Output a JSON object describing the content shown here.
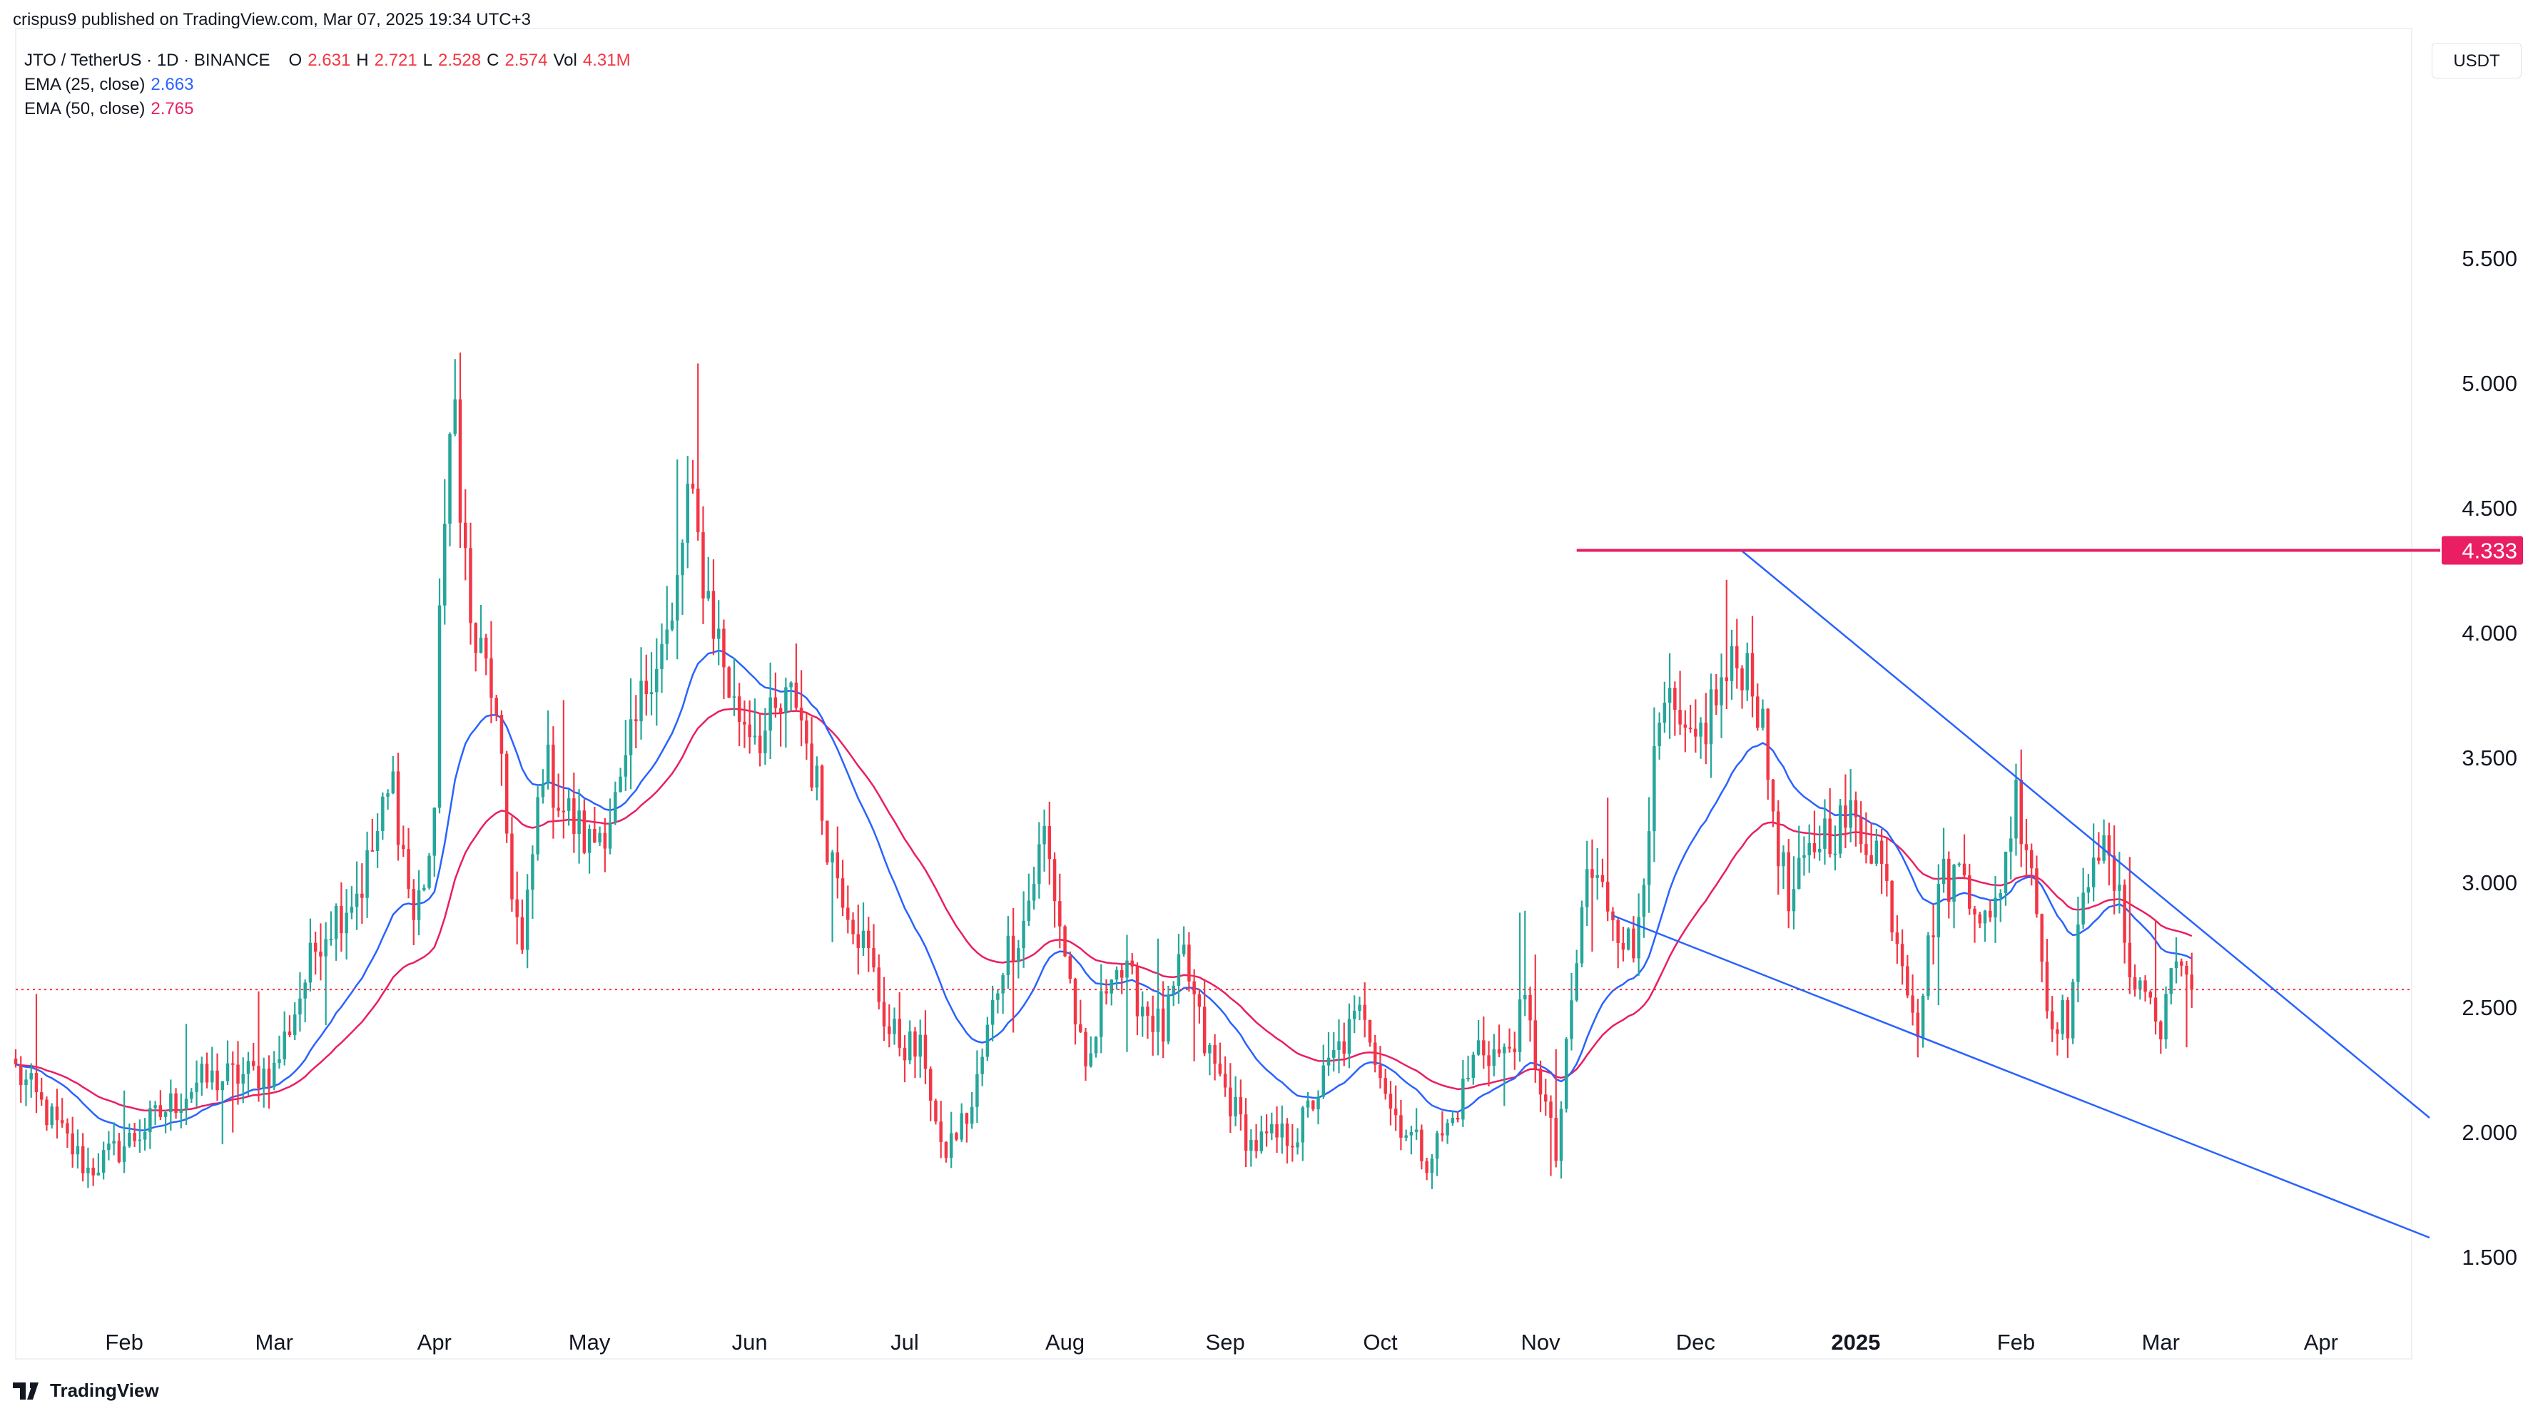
{
  "header": {
    "published": "crispus9 published on TradingView.com, Mar 07, 2025 19:34 UTC+3"
  },
  "legend": {
    "symbol": "JTO / TetherUS · 1D · BINANCE",
    "o_label": "O",
    "o": "2.631",
    "h_label": "H",
    "h": "2.721",
    "l_label": "L",
    "l": "2.528",
    "c_label": "C",
    "c": "2.574",
    "vol_label": "Vol",
    "vol": "4.31M",
    "ema25_label": "EMA (25, close)",
    "ema25": "2.663",
    "ema50_label": "EMA (50, close)",
    "ema50": "2.765"
  },
  "currency_button": "USDT",
  "footer": {
    "brand": "TradingView",
    "logo_icon": "tradingview-logo-icon"
  },
  "colors": {
    "up": "#26a69a",
    "down": "#f23645",
    "ema25": "#2962ff",
    "ema50": "#e91e63",
    "resistance": "#e91e63",
    "trendline": "#2962ff",
    "last_price_line": "#f23645"
  },
  "chart_data": {
    "type": "candlestick",
    "y_ticks": [
      "5.500",
      "5.000",
      "4.500",
      "4.000",
      "3.500",
      "3.000",
      "2.500",
      "2.000",
      "1.500"
    ],
    "y_tick_values": [
      5.5,
      5.0,
      4.5,
      4.0,
      3.5,
      3.0,
      2.5,
      2.0,
      1.5
    ],
    "x_ticks": [
      "Feb",
      "Mar",
      "Apr",
      "May",
      "Jun",
      "Jul",
      "Aug",
      "Sep",
      "Oct",
      "Nov",
      "Dec",
      "2025",
      "Feb",
      "Mar",
      "Apr"
    ],
    "x_tick_dates": [
      "2024-02-01",
      "2024-03-01",
      "2024-04-01",
      "2024-05-01",
      "2024-06-01",
      "2024-07-01",
      "2024-08-01",
      "2024-09-01",
      "2024-10-01",
      "2024-11-01",
      "2024-12-01",
      "2025-01-01",
      "2025-02-01",
      "2025-03-01",
      "2025-04-01"
    ],
    "x_range": [
      "2024-01-11",
      "2025-04-22"
    ],
    "y_range": [
      1.3,
      5.85
    ],
    "resistance_level": {
      "label": "4.333",
      "value": 4.333,
      "from": "2024-11-08"
    },
    "last_price": 2.574,
    "trendlines": [
      {
        "name": "upper",
        "points": [
          [
            "2024-12-10",
            4.33
          ],
          [
            "2025-04-22",
            2.06
          ]
        ]
      },
      {
        "name": "lower",
        "points": [
          [
            "2024-11-15",
            2.87
          ],
          [
            "2025-04-22",
            1.58
          ]
        ]
      }
    ],
    "anchors": [
      [
        "2024-01-11",
        2.25
      ],
      [
        "2024-01-25",
        1.85
      ],
      [
        "2024-02-01",
        1.95
      ],
      [
        "2024-02-15",
        2.2
      ],
      [
        "2024-03-01",
        2.25
      ],
      [
        "2024-03-10",
        2.8
      ],
      [
        "2024-03-18",
        3.0
      ],
      [
        "2024-03-24",
        3.4
      ],
      [
        "2024-03-28",
        2.85
      ],
      [
        "2024-04-01",
        3.2
      ],
      [
        "2024-04-02",
        4.2
      ],
      [
        "2024-04-05",
        4.9
      ],
      [
        "2024-04-08",
        4.0
      ],
      [
        "2024-04-12",
        3.8
      ],
      [
        "2024-04-16",
        3.0
      ],
      [
        "2024-04-18",
        2.7
      ],
      [
        "2024-04-22",
        3.5
      ],
      [
        "2024-04-26",
        3.3
      ],
      [
        "2024-05-01",
        3.15
      ],
      [
        "2024-05-07",
        3.35
      ],
      [
        "2024-05-13",
        3.9
      ],
      [
        "2024-05-17",
        4.0
      ],
      [
        "2024-05-20",
        4.55
      ],
      [
        "2024-05-24",
        4.15
      ],
      [
        "2024-05-29",
        3.7
      ],
      [
        "2024-06-04",
        3.6
      ],
      [
        "2024-06-10",
        3.75
      ],
      [
        "2024-06-17",
        3.1
      ],
      [
        "2024-06-24",
        2.7
      ],
      [
        "2024-06-28",
        2.4
      ],
      [
        "2024-07-05",
        2.3
      ],
      [
        "2024-07-08",
        1.9
      ],
      [
        "2024-07-14",
        2.1
      ],
      [
        "2024-07-20",
        2.7
      ],
      [
        "2024-07-24",
        2.85
      ],
      [
        "2024-07-28",
        3.2
      ],
      [
        "2024-08-02",
        2.6
      ],
      [
        "2024-08-05",
        2.2
      ],
      [
        "2024-08-10",
        2.7
      ],
      [
        "2024-08-20",
        2.4
      ],
      [
        "2024-08-24",
        2.7
      ],
      [
        "2024-08-28",
        2.35
      ],
      [
        "2024-09-06",
        1.95
      ],
      [
        "2024-09-15",
        2.0
      ],
      [
        "2024-09-22",
        2.3
      ],
      [
        "2024-09-28",
        2.5
      ],
      [
        "2024-10-03",
        2.1
      ],
      [
        "2024-10-10",
        1.9
      ],
      [
        "2024-10-15",
        2.05
      ],
      [
        "2024-10-20",
        2.35
      ],
      [
        "2024-10-25",
        2.3
      ],
      [
        "2024-10-29",
        2.5
      ],
      [
        "2024-11-04",
        1.9
      ],
      [
        "2024-11-07",
        2.5
      ],
      [
        "2024-11-10",
        3.05
      ],
      [
        "2024-11-15",
        2.9
      ],
      [
        "2024-11-19",
        2.7
      ],
      [
        "2024-11-22",
        3.3
      ],
      [
        "2024-11-25",
        3.7
      ],
      [
        "2024-11-30",
        3.5
      ],
      [
        "2024-12-05",
        3.75
      ],
      [
        "2024-12-10",
        3.9
      ],
      [
        "2024-12-12",
        3.85
      ],
      [
        "2024-12-16",
        3.3
      ],
      [
        "2024-12-19",
        2.9
      ],
      [
        "2024-12-25",
        3.2
      ],
      [
        "2024-12-31",
        3.25
      ],
      [
        "2025-01-05",
        3.15
      ],
      [
        "2025-01-09",
        2.8
      ],
      [
        "2025-01-13",
        2.45
      ],
      [
        "2025-01-17",
        3.0
      ],
      [
        "2025-01-22",
        3.05
      ],
      [
        "2025-01-27",
        2.8
      ],
      [
        "2025-02-01",
        3.35
      ],
      [
        "2025-02-04",
        3.1
      ],
      [
        "2025-02-07",
        2.5
      ],
      [
        "2025-02-11",
        2.45
      ],
      [
        "2025-02-16",
        3.2
      ],
      [
        "2025-02-20",
        3.0
      ],
      [
        "2025-02-24",
        2.6
      ],
      [
        "2025-02-27",
        2.55
      ],
      [
        "2025-03-01",
        2.35
      ],
      [
        "2025-03-03",
        2.75
      ],
      [
        "2025-03-05",
        2.6
      ],
      [
        "2025-03-07",
        2.574
      ]
    ]
  }
}
